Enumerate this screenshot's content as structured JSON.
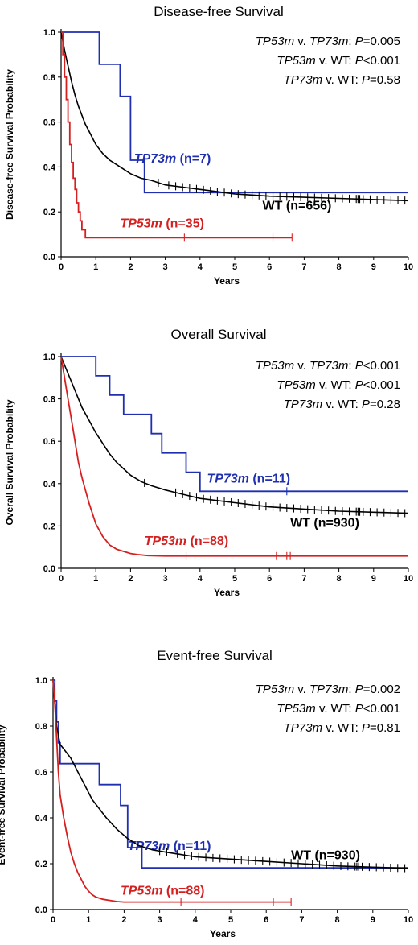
{
  "colors": {
    "tp73m": "#1f2fb0",
    "tp53m": "#d62020",
    "wt": "#000000"
  },
  "chart_data": [
    {
      "type": "line",
      "title": "Disease-free Survival",
      "xlabel": "Years",
      "ylabel": "Disease-free Survival Probability",
      "xlim": [
        0,
        10
      ],
      "ylim": [
        0,
        1
      ],
      "xticks": [
        "0",
        "1",
        "2",
        "3",
        "4",
        "5",
        "6",
        "7",
        "8",
        "9",
        "10"
      ],
      "yticks": [
        "0.0",
        "0.2",
        "0.4",
        "0.6",
        "0.8",
        "1.0"
      ],
      "grid": false,
      "stats": [
        {
          "a": "TP53m",
          "sep": " v. ",
          "b": "TP73m",
          "p_label": "P",
          "p_value": "=0.005"
        },
        {
          "a": "TP53m",
          "sep": " v. ",
          "b": "WT",
          "p_label": "P",
          "p_value": "<0.001"
        },
        {
          "a": "TP73m",
          "sep": " v. ",
          "b": "WT",
          "p_label": "P",
          "p_value": "=0.58"
        }
      ],
      "series": [
        {
          "key": "tp73m",
          "label_name": "TP73m",
          "label_n": " (n=7)",
          "x": [
            0,
            1.1,
            1.1,
            1.7,
            1.7,
            2.0,
            2.0,
            2.4,
            2.4,
            10
          ],
          "y": [
            1.0,
            1.0,
            0.857,
            0.857,
            0.714,
            0.714,
            0.43,
            0.43,
            0.286,
            0.286
          ],
          "censor_x": []
        },
        {
          "key": "wt",
          "label_name": "",
          "label_n": "WT (n=656)",
          "x": [
            0,
            0.1,
            0.2,
            0.3,
            0.4,
            0.5,
            0.6,
            0.7,
            0.8,
            0.9,
            1.0,
            1.2,
            1.4,
            1.6,
            1.8,
            2.0,
            2.3,
            2.6,
            3.0,
            3.5,
            4.0,
            5.0,
            6.0,
            7.0,
            8.0,
            9.0,
            10.0
          ],
          "y": [
            1.0,
            0.92,
            0.85,
            0.78,
            0.72,
            0.67,
            0.63,
            0.59,
            0.56,
            0.53,
            0.5,
            0.46,
            0.43,
            0.41,
            0.39,
            0.37,
            0.35,
            0.34,
            0.32,
            0.31,
            0.3,
            0.28,
            0.27,
            0.265,
            0.26,
            0.255,
            0.25
          ],
          "censor_x": [
            2.8,
            3.1,
            3.3,
            3.5,
            3.7,
            3.9,
            4.1,
            4.3,
            4.5,
            4.7,
            4.9,
            5.1,
            5.3,
            5.5,
            5.7,
            5.9,
            6.1,
            6.3,
            6.5,
            6.7,
            6.9,
            7.1,
            7.3,
            7.5,
            7.7,
            7.9,
            8.1,
            8.3,
            8.5,
            8.55,
            8.6,
            8.7,
            8.9,
            9.1,
            9.3,
            9.5,
            9.7,
            9.9
          ]
        },
        {
          "key": "tp53m",
          "label_name": "TP53m",
          "label_n": " (n=35)",
          "x": [
            0,
            0.05,
            0.05,
            0.1,
            0.1,
            0.15,
            0.15,
            0.2,
            0.2,
            0.25,
            0.25,
            0.3,
            0.3,
            0.35,
            0.35,
            0.4,
            0.4,
            0.45,
            0.45,
            0.5,
            0.5,
            0.55,
            0.55,
            0.6,
            0.6,
            0.7,
            0.7,
            1.3,
            1.3,
            6.65
          ],
          "y": [
            1.0,
            1.0,
            0.9,
            0.9,
            0.8,
            0.8,
            0.7,
            0.7,
            0.6,
            0.6,
            0.5,
            0.5,
            0.42,
            0.42,
            0.35,
            0.35,
            0.3,
            0.3,
            0.24,
            0.24,
            0.2,
            0.2,
            0.16,
            0.16,
            0.12,
            0.12,
            0.085,
            0.085,
            0.085,
            0.085
          ],
          "censor_x": [
            3.55,
            6.1,
            6.65
          ]
        }
      ]
    },
    {
      "type": "line",
      "title": "Overall Survival",
      "xlabel": "Years",
      "ylabel": "Overall Survival Probability",
      "xlim": [
        0,
        10
      ],
      "ylim": [
        0,
        1
      ],
      "xticks": [
        "0",
        "1",
        "2",
        "3",
        "4",
        "5",
        "6",
        "7",
        "8",
        "9",
        "10"
      ],
      "yticks": [
        "0.0",
        "0.2",
        "0.4",
        "0.6",
        "0.8",
        "1.0"
      ],
      "grid": false,
      "stats": [
        {
          "a": "TP53m",
          "sep": " v. ",
          "b": "TP73m",
          "p_label": "P",
          "p_value": "<0.001"
        },
        {
          "a": "TP53m",
          "sep": " v. ",
          "b": "WT",
          "p_label": "P",
          "p_value": "<0.001"
        },
        {
          "a": "TP73m",
          "sep": " v. ",
          "b": "WT",
          "p_label": "P",
          "p_value": "=0.28"
        }
      ],
      "series": [
        {
          "key": "tp73m",
          "label_name": "TP73m",
          "label_n": " (n=11)",
          "x": [
            0,
            1.0,
            1.0,
            1.4,
            1.4,
            1.8,
            1.8,
            2.6,
            2.6,
            2.9,
            2.9,
            3.6,
            3.6,
            4.0,
            4.0,
            10
          ],
          "y": [
            1.0,
            1.0,
            0.909,
            0.909,
            0.818,
            0.818,
            0.727,
            0.727,
            0.636,
            0.636,
            0.545,
            0.545,
            0.454,
            0.454,
            0.364,
            0.364
          ],
          "censor_x": [
            6.5
          ]
        },
        {
          "key": "wt",
          "label_name": "",
          "label_n": "WT (n=930)",
          "x": [
            0,
            0.1,
            0.2,
            0.3,
            0.4,
            0.5,
            0.6,
            0.8,
            1.0,
            1.2,
            1.4,
            1.6,
            1.8,
            2.0,
            2.3,
            2.6,
            3.0,
            3.5,
            4.0,
            5.0,
            6.0,
            7.0,
            8.0,
            9.0,
            10.0
          ],
          "y": [
            1.0,
            0.96,
            0.92,
            0.88,
            0.84,
            0.8,
            0.76,
            0.7,
            0.64,
            0.59,
            0.54,
            0.5,
            0.47,
            0.44,
            0.41,
            0.39,
            0.37,
            0.35,
            0.33,
            0.31,
            0.29,
            0.28,
            0.27,
            0.265,
            0.26
          ],
          "censor_x": [
            2.4,
            3.3,
            3.5,
            3.7,
            3.9,
            4.1,
            4.3,
            4.5,
            4.7,
            4.9,
            5.1,
            5.3,
            5.5,
            5.7,
            5.9,
            6.1,
            6.3,
            6.5,
            6.7,
            6.9,
            7.1,
            7.3,
            7.5,
            7.7,
            7.9,
            8.1,
            8.3,
            8.5,
            8.55,
            8.6,
            8.7,
            8.9,
            9.1,
            9.3,
            9.5,
            9.7,
            9.9
          ]
        },
        {
          "key": "tp53m",
          "label_name": "TP53m",
          "label_n": " (n=88)",
          "x": [
            0,
            0.1,
            0.2,
            0.3,
            0.4,
            0.5,
            0.6,
            0.7,
            0.8,
            0.9,
            1.0,
            1.1,
            1.2,
            1.3,
            1.4,
            1.5,
            1.6,
            1.8,
            2.0,
            2.2,
            2.5,
            3.0,
            10
          ],
          "y": [
            1.0,
            0.9,
            0.8,
            0.7,
            0.6,
            0.5,
            0.43,
            0.37,
            0.31,
            0.26,
            0.21,
            0.18,
            0.15,
            0.13,
            0.11,
            0.1,
            0.09,
            0.08,
            0.07,
            0.065,
            0.06,
            0.058,
            0.058
          ],
          "censor_x": [
            3.6,
            6.2,
            6.5,
            6.6
          ]
        }
      ]
    },
    {
      "type": "line",
      "title": "Event-free Survival",
      "xlabel": "Years",
      "ylabel": "Event-free Survival Probability",
      "xlim": [
        0,
        10
      ],
      "ylim": [
        0,
        1
      ],
      "xticks": [
        "0",
        "1",
        "2",
        "3",
        "4",
        "5",
        "6",
        "7",
        "8",
        "9",
        "10"
      ],
      "yticks": [
        "0.0",
        "0.2",
        "0.4",
        "0.6",
        "0.8",
        "1.0"
      ],
      "grid": false,
      "stats": [
        {
          "a": "TP53m",
          "sep": " v. ",
          "b": "TP73m",
          "p_label": "P",
          "p_value": "=0.002"
        },
        {
          "a": "TP53m",
          "sep": " v. ",
          "b": "WT",
          "p_label": "P",
          "p_value": "<0.001"
        },
        {
          "a": "TP73m",
          "sep": " v. ",
          "b": "WT",
          "p_label": "P",
          "p_value": "=0.81"
        }
      ],
      "series": [
        {
          "key": "tp73m",
          "label_name": "TP73m",
          "label_n": " (n=11)",
          "x": [
            0,
            0.05,
            0.05,
            0.1,
            0.1,
            0.15,
            0.15,
            0.2,
            0.2,
            1.3,
            1.3,
            1.9,
            1.9,
            2.1,
            2.1,
            2.5,
            2.5,
            10
          ],
          "y": [
            1.0,
            1.0,
            0.909,
            0.909,
            0.818,
            0.818,
            0.727,
            0.727,
            0.636,
            0.636,
            0.545,
            0.545,
            0.454,
            0.454,
            0.27,
            0.27,
            0.182,
            0.182
          ],
          "censor_x": []
        },
        {
          "key": "wt",
          "label_name": "",
          "label_n": "WT (n=930)",
          "x": [
            0,
            0.05,
            0.1,
            0.2,
            0.3,
            0.5,
            0.7,
            0.9,
            1.1,
            1.3,
            1.5,
            1.8,
            2.1,
            2.4,
            2.8,
            3.2,
            3.6,
            4.0,
            5.0,
            6.0,
            7.0,
            8.0,
            9.0,
            10.0
          ],
          "y": [
            1.0,
            0.9,
            0.8,
            0.72,
            0.7,
            0.66,
            0.6,
            0.54,
            0.48,
            0.44,
            0.4,
            0.35,
            0.31,
            0.28,
            0.26,
            0.25,
            0.24,
            0.23,
            0.22,
            0.21,
            0.2,
            0.19,
            0.185,
            0.18
          ],
          "censor_x": [
            3.0,
            3.2,
            3.5,
            3.7,
            3.9,
            4.1,
            4.3,
            4.5,
            4.7,
            4.9,
            5.1,
            5.3,
            5.5,
            5.7,
            5.9,
            6.1,
            6.3,
            6.5,
            6.7,
            6.9,
            7.1,
            7.3,
            7.5,
            7.7,
            7.9,
            8.1,
            8.3,
            8.5,
            8.55,
            8.6,
            8.7,
            8.9,
            9.1,
            9.3,
            9.5,
            9.7,
            9.9
          ]
        },
        {
          "key": "tp53m",
          "label_name": "TP53m",
          "label_n": " (n=88)",
          "x": [
            0,
            0.05,
            0.1,
            0.15,
            0.2,
            0.3,
            0.4,
            0.5,
            0.6,
            0.7,
            0.8,
            0.9,
            1.0,
            1.1,
            1.2,
            1.4,
            1.6,
            1.8,
            2.0,
            2.5,
            3.0,
            6.7
          ],
          "y": [
            1.0,
            0.9,
            0.75,
            0.6,
            0.5,
            0.4,
            0.32,
            0.25,
            0.2,
            0.16,
            0.13,
            0.1,
            0.08,
            0.065,
            0.055,
            0.045,
            0.04,
            0.035,
            0.033,
            0.033,
            0.033,
            0.033
          ],
          "censor_x": [
            3.6,
            6.2,
            6.7
          ]
        }
      ]
    }
  ]
}
